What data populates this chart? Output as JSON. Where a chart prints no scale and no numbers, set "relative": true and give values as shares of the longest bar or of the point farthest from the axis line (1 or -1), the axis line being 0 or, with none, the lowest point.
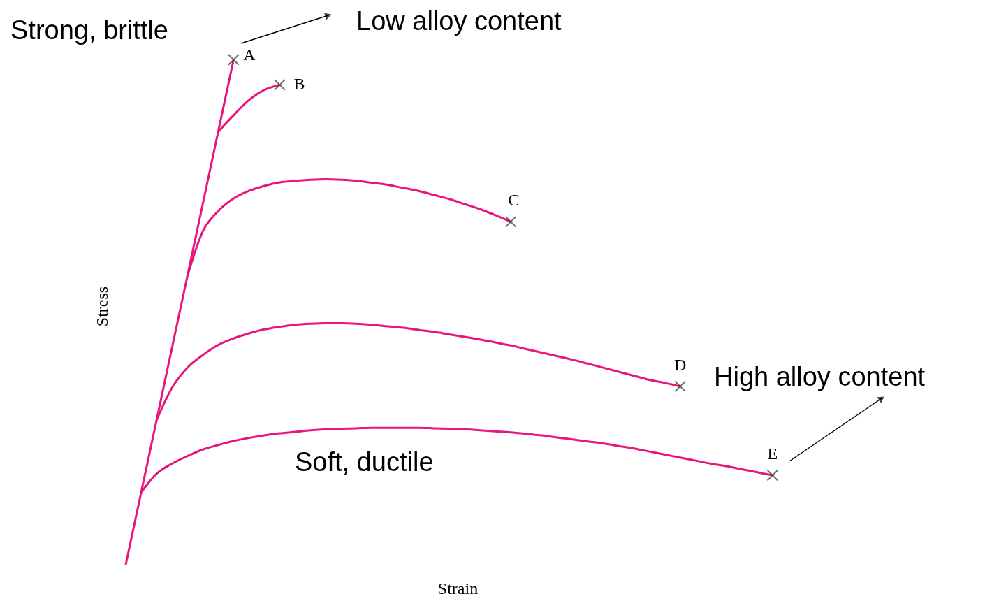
{
  "chart_data": {
    "type": "line",
    "relative": true,
    "xlabel": "Strain",
    "ylabel": "Stress",
    "line_style": "solid",
    "annotations": [
      "Strong, brittle",
      "Low alloy content",
      "High alloy content",
      "Soft, ductile"
    ],
    "categories": [
      null,
      null,
      null,
      null,
      null,
      null,
      null,
      null,
      null,
      null,
      null,
      null,
      null,
      null,
      null,
      null,
      null,
      null,
      null,
      null,
      null,
      null,
      null,
      null,
      null,
      null,
      null,
      null,
      null,
      null,
      null,
      null,
      null,
      null,
      null,
      null,
      null,
      null,
      null,
      null,
      null,
      null,
      null
    ],
    "series": [
      {
        "name": "A",
        "color": "#e8157c",
        "values": [
          0,
          0.143,
          0.286,
          0.429,
          0.571,
          0.714,
          0.857,
          1.0,
          null,
          null,
          null,
          null,
          null,
          null,
          null,
          null,
          null,
          null,
          null,
          null,
          null,
          null,
          null,
          null,
          null,
          null,
          null,
          null,
          null,
          null,
          null,
          null,
          null,
          null,
          null,
          null,
          null,
          null,
          null,
          null,
          null,
          null,
          null
        ]
      },
      {
        "name": "B",
        "color": "#e8157c",
        "values": [
          null,
          null,
          null,
          null,
          null,
          null,
          0.857,
          0.89,
          0.92,
          0.94,
          0.95,
          null,
          null,
          null,
          null,
          null,
          null,
          null,
          null,
          null,
          null,
          null,
          null,
          null,
          null,
          null,
          null,
          null,
          null,
          null,
          null,
          null,
          null,
          null,
          null,
          null,
          null,
          null,
          null,
          null,
          null,
          null,
          null
        ]
      },
      {
        "name": "C",
        "color": "#e8157c",
        "values": [
          null,
          null,
          null,
          null,
          0.571,
          0.66,
          0.7,
          0.725,
          0.74,
          0.75,
          0.757,
          0.76,
          0.762,
          0.763,
          0.762,
          0.76,
          0.756,
          0.752,
          0.746,
          0.74,
          0.732,
          0.724,
          0.714,
          0.704,
          0.692,
          0.679,
          null,
          null,
          null,
          null,
          null,
          null,
          null,
          null,
          null,
          null,
          null,
          null,
          null,
          null,
          null,
          null,
          null
        ]
      },
      {
        "name": "D",
        "color": "#e8157c",
        "values": [
          null,
          null,
          0.286,
          0.35,
          0.39,
          0.415,
          0.435,
          0.448,
          0.458,
          0.466,
          0.471,
          0.475,
          0.477,
          0.478,
          0.478,
          0.477,
          0.475,
          0.472,
          0.469,
          0.465,
          0.461,
          0.456,
          0.451,
          0.446,
          0.44,
          0.434,
          0.427,
          0.42,
          0.413,
          0.406,
          0.398,
          0.39,
          0.382,
          0.374,
          0.366,
          0.36,
          0.353,
          null,
          null,
          null,
          null,
          null,
          null
        ]
      },
      {
        "name": "E",
        "color": "#e8157c",
        "values": [
          null,
          0.143,
          0.18,
          0.2,
          0.215,
          0.228,
          0.237,
          0.245,
          0.251,
          0.256,
          0.26,
          0.263,
          0.266,
          0.268,
          0.269,
          0.27,
          0.271,
          0.271,
          0.271,
          0.271,
          0.27,
          0.269,
          0.268,
          0.266,
          0.264,
          0.262,
          0.259,
          0.256,
          0.252,
          0.248,
          0.244,
          0.24,
          0.235,
          0.23,
          0.224,
          0.218,
          0.212,
          0.206,
          0.2,
          0.195,
          0.189,
          0.183,
          0.177
        ]
      }
    ]
  }
}
